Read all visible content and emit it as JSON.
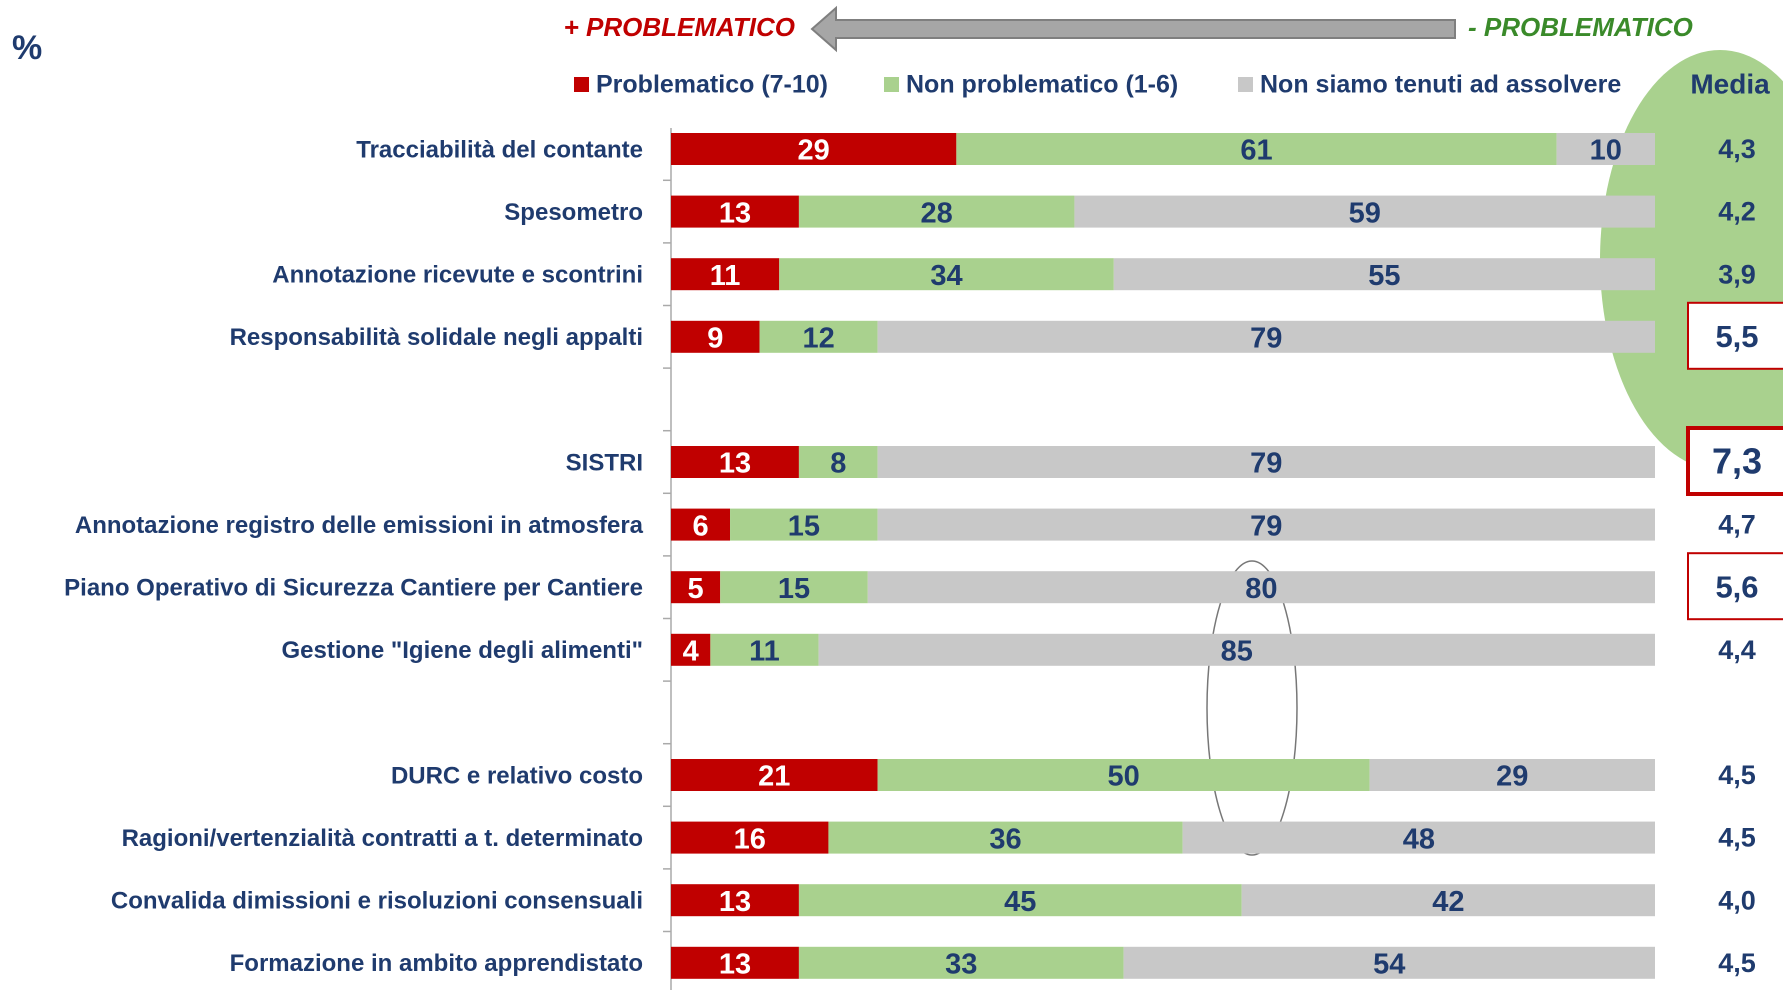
{
  "chart_data": {
    "type": "stacked-barh",
    "unit_label": "%",
    "annotations": [
      "+ PROBLEMATICO",
      "- PROBLEMATICO"
    ],
    "categories": [
      "Tracciabilità del contante",
      "Spesometro",
      "Annotazione ricevute e scontrini",
      "Responsabilità solidale negli appalti",
      null,
      "SISTRI",
      "Annotazione registro delle emissioni in atmosfera",
      "Piano Operativo di Sicurezza Cantiere per Cantiere",
      "Gestione \"Igiene degli alimenti\"",
      null,
      "DURC e relativo costo",
      "Ragioni/vertenzialità contratti a t. determinato",
      "Convalida dimissioni e risoluzioni consensuali",
      "Formazione in ambito apprendistato"
    ],
    "series": [
      {
        "name": "Problematico (7-10)",
        "color": "#c00000",
        "label_color": "#ffffff",
        "values": [
          29,
          13,
          11,
          9,
          null,
          13,
          6,
          5,
          4,
          null,
          21,
          16,
          13,
          13
        ]
      },
      {
        "name": "Non problematico (1-6)",
        "color": "#a9d18e",
        "label_color": "#1f3b6e",
        "values": [
          61,
          28,
          34,
          12,
          null,
          8,
          15,
          15,
          11,
          null,
          50,
          36,
          45,
          33
        ]
      },
      {
        "name": "Non siamo tenuti ad assolvere",
        "color": "#c8c8c8",
        "label_color": "#1f3b6e",
        "values": [
          10,
          59,
          55,
          79,
          null,
          79,
          79,
          80,
          85,
          null,
          29,
          48,
          42,
          54
        ]
      }
    ],
    "media": {
      "label": "Media",
      "values": [
        4.3,
        4.2,
        3.9,
        5.5,
        null,
        7.3,
        4.7,
        5.6,
        4.4,
        null,
        4.5,
        4.5,
        4.0,
        4.5
      ],
      "value_labels": [
        "4,3",
        "4,2",
        "3,9",
        "5,5",
        null,
        "7,3",
        "4,7",
        "5,6",
        "4,4",
        null,
        "4,5",
        "4,5",
        "4,0",
        "4,5"
      ]
    },
    "xlim": [
      0,
      100
    ]
  }
}
